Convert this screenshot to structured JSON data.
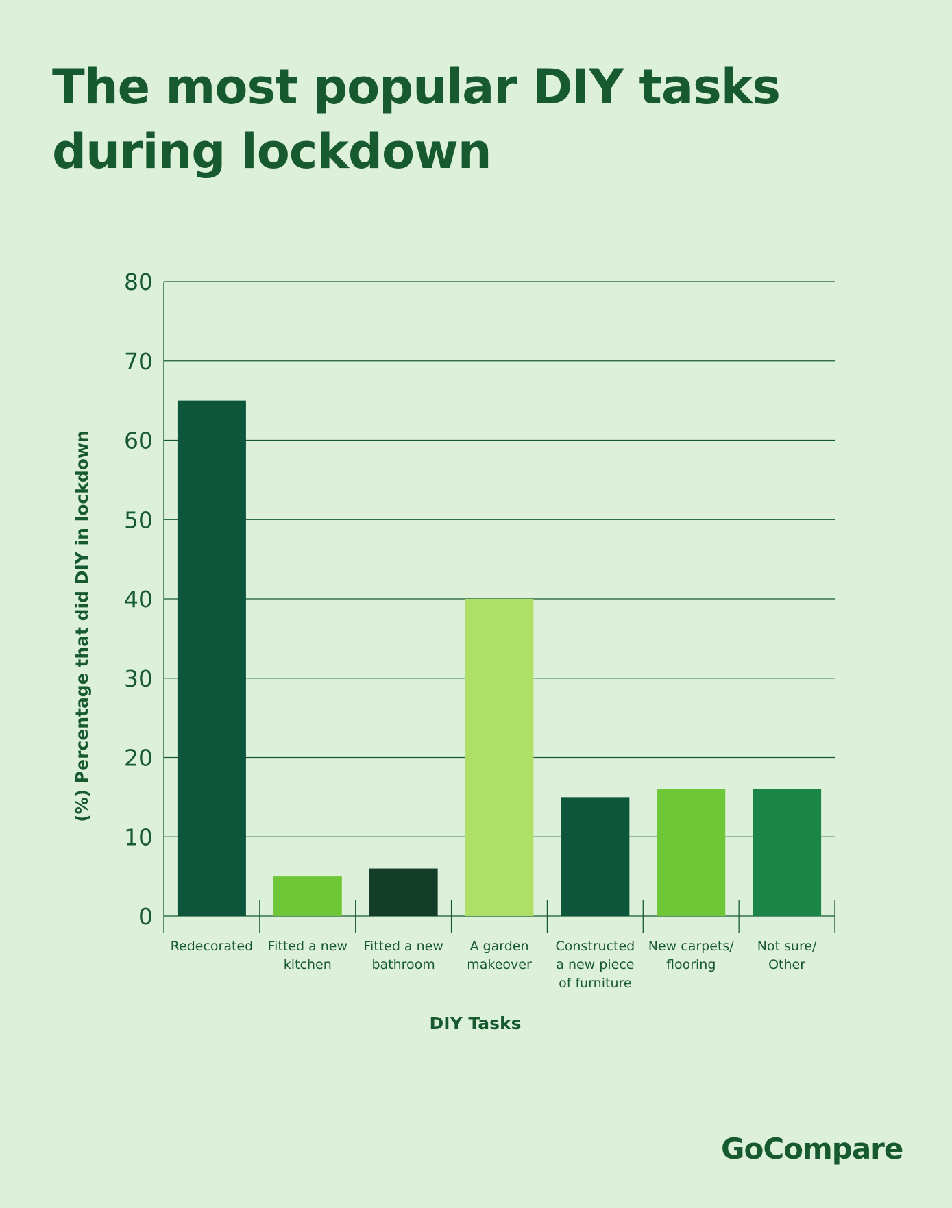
{
  "title": "The most popular DIY tasks during lockdown",
  "brand": "GoCompare",
  "colors": {
    "background": "#ddf0da",
    "text": "#175a2f",
    "axis": "#175a2f"
  },
  "chart_data": {
    "type": "bar",
    "title": "The most popular DIY tasks during lockdown",
    "xlabel": "DIY Tasks",
    "ylabel": "(%) Percentage that did DIY in lockdown",
    "ylim": [
      0,
      80
    ],
    "yticks": [
      0,
      10,
      20,
      30,
      40,
      50,
      60,
      70,
      80
    ],
    "grid": true,
    "categories": [
      [
        "Redecorated"
      ],
      [
        "Fitted a new",
        "kitchen"
      ],
      [
        "Fitted a new",
        "bathroom"
      ],
      [
        "A garden",
        "makeover"
      ],
      [
        "Constructed",
        "a new piece",
        "of furniture"
      ],
      [
        "New carpets/",
        "flooring"
      ],
      [
        "Not sure/",
        "Other"
      ]
    ],
    "values": [
      65,
      5,
      6,
      40,
      15,
      16,
      16
    ],
    "bar_colors": [
      "#0d563c",
      "#6fc636",
      "#133d28",
      "#aedf66",
      "#0d563c",
      "#6fc636",
      "#1a8547"
    ]
  }
}
